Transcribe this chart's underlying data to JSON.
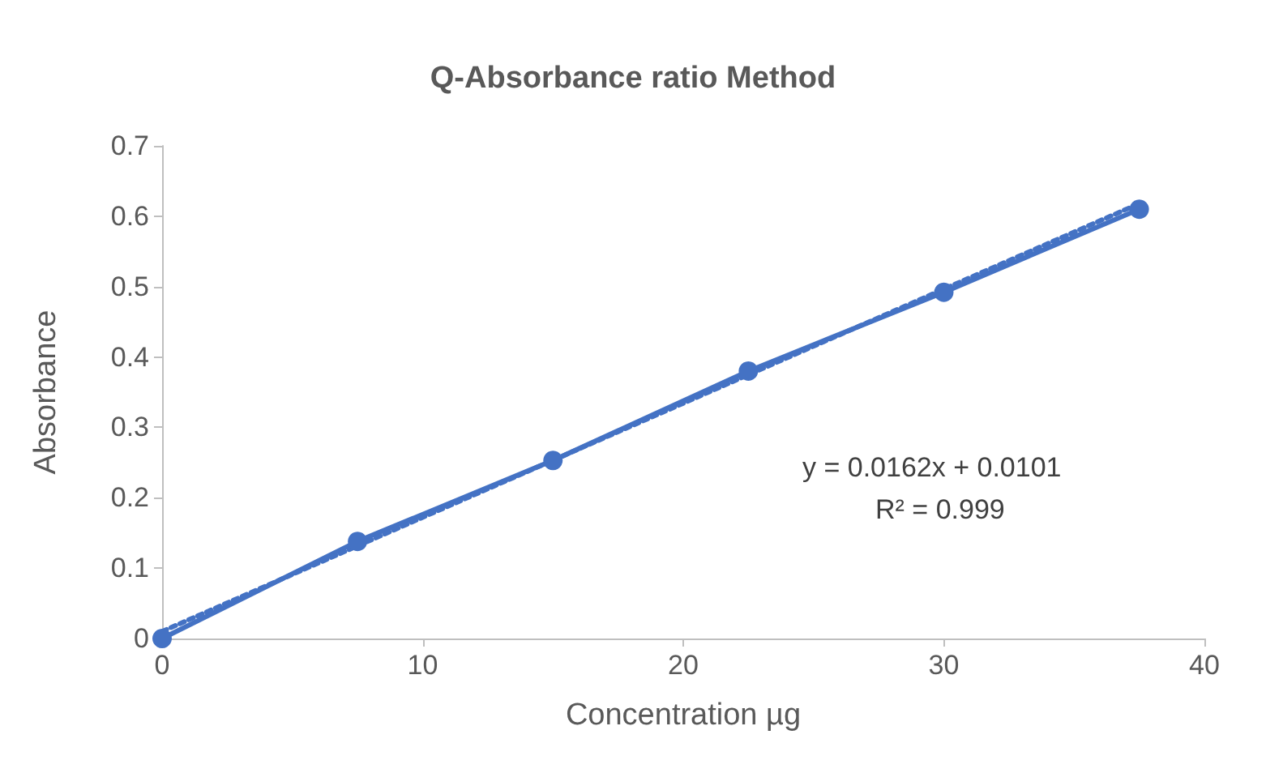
{
  "chart_data": {
    "type": "line",
    "title": "Q-Absorbance ratio Method",
    "xlabel": "Concentration µg",
    "ylabel": "Absorbance",
    "x": [
      0,
      7.5,
      15,
      22.5,
      30,
      37.5
    ],
    "series": [
      {
        "values": [
          0,
          0.138,
          0.253,
          0.38,
          0.492,
          0.61
        ],
        "color": "#4472c4",
        "marker": "circle",
        "line_style": "solid"
      },
      {
        "type": "line",
        "x": [
          0,
          37.5
        ],
        "values": [
          0.01,
          0.618
        ],
        "color": "#4472c4",
        "marker": "none",
        "line_style": "dotted"
      }
    ],
    "xlim": [
      0,
      40
    ],
    "xticks": [
      0,
      10,
      20,
      30,
      40
    ],
    "ylim": [
      0,
      0.7
    ],
    "yticks": [
      0,
      0.1,
      0.2,
      0.3,
      0.4,
      0.5,
      0.6,
      0.7
    ],
    "annotations": [
      "y = 0.0162x + 0.0101",
      "R² = 0.999"
    ],
    "grid": false
  }
}
